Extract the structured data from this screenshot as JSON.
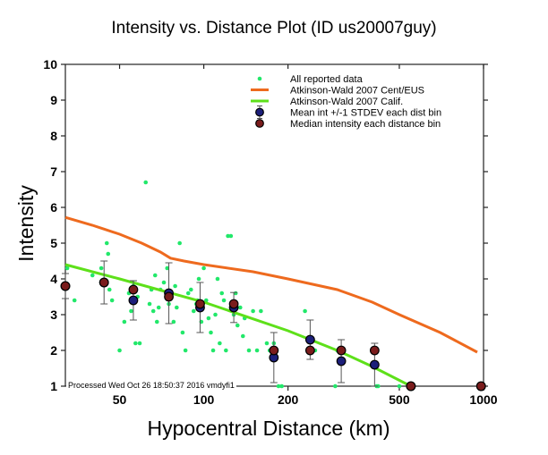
{
  "chart_data": {
    "type": "scatter",
    "title": "Intensity vs. Distance Plot (ID us20007guy)",
    "xlabel": "Hypocentral Distance (km)",
    "ylabel": "Intensity",
    "xscale": "log",
    "xlim": [
      32,
      1000
    ],
    "ylim": [
      1,
      10
    ],
    "xticks": [
      50,
      100,
      200,
      500,
      1000
    ],
    "xtick_labels": [
      "50",
      "100",
      "200",
      "500",
      "1000"
    ],
    "yticks": [
      1,
      2,
      3,
      4,
      5,
      6,
      7,
      8,
      9,
      10
    ],
    "ytick_labels": [
      "1",
      "2",
      "3",
      "4",
      "5",
      "6",
      "7",
      "8",
      "9",
      "10"
    ],
    "grid": false,
    "legend_position": "top-right",
    "annotation": "Processed Wed Oct 26 18:50:37 2016 vmdyfi1",
    "colors": {
      "reported": "#22e86a",
      "cent_eus": "#ee6a1e",
      "calif": "#5ee01a",
      "mean": "#1c1f7a",
      "median": "#7a1c1c",
      "errorbar": "#555555"
    },
    "legend": [
      {
        "label": "All reported data",
        "kind": "dot"
      },
      {
        "label": "Atkinson-Wald 2007 Cent/EUS",
        "kind": "line-orange"
      },
      {
        "label": "Atkinson-Wald 2007 Calif.",
        "kind": "line-green"
      },
      {
        "label": "Mean int +/-1 STDEV each dist bin",
        "kind": "mean"
      },
      {
        "label": "Median intensity each distance bin",
        "kind": "median"
      }
    ],
    "series": [
      {
        "name": "All reported data",
        "points": [
          [
            32.5,
            4.3
          ],
          [
            34.5,
            3.4
          ],
          [
            40,
            4.1
          ],
          [
            43,
            4.3
          ],
          [
            45,
            5.0
          ],
          [
            45.5,
            4.7
          ],
          [
            46,
            3.7
          ],
          [
            47,
            3.4
          ],
          [
            50,
            2.0
          ],
          [
            52,
            2.8
          ],
          [
            54,
            3.6
          ],
          [
            55,
            3.1
          ],
          [
            56,
            3.8
          ],
          [
            57,
            2.2
          ],
          [
            58,
            3.5
          ],
          [
            59,
            2.2
          ],
          [
            62,
            6.7
          ],
          [
            64,
            3.3
          ],
          [
            65,
            3.7
          ],
          [
            66,
            3.1
          ],
          [
            67,
            4.1
          ],
          [
            68,
            2.8
          ],
          [
            69,
            3.2
          ],
          [
            70,
            3.7
          ],
          [
            72,
            3.9
          ],
          [
            74,
            4.3
          ],
          [
            75,
            3.3
          ],
          [
            76,
            3.6
          ],
          [
            78,
            2.8
          ],
          [
            79,
            3.8
          ],
          [
            80,
            3.2
          ],
          [
            82,
            5.0
          ],
          [
            84,
            2.5
          ],
          [
            86,
            2.0
          ],
          [
            88,
            3.6
          ],
          [
            90,
            3.7
          ],
          [
            92,
            3.1
          ],
          [
            94,
            3.3
          ],
          [
            95,
            3.4
          ],
          [
            96,
            4.0
          ],
          [
            98,
            2.8
          ],
          [
            100,
            4.3
          ],
          [
            102,
            3.4
          ],
          [
            104,
            2.9
          ],
          [
            106,
            2.5
          ],
          [
            108,
            2.0
          ],
          [
            110,
            3.0
          ],
          [
            112,
            4.0
          ],
          [
            114,
            2.2
          ],
          [
            116,
            3.6
          ],
          [
            118,
            3.4
          ],
          [
            120,
            2.0
          ],
          [
            122,
            5.2
          ],
          [
            125,
            5.2
          ],
          [
            128,
            3.0
          ],
          [
            130,
            3.6
          ],
          [
            132,
            2.7
          ],
          [
            135,
            3.2
          ],
          [
            138,
            2.4
          ],
          [
            140,
            2.9
          ],
          [
            145,
            2.0
          ],
          [
            150,
            3.1
          ],
          [
            155,
            2.0
          ],
          [
            160,
            3.1
          ],
          [
            168,
            2.2
          ],
          [
            172,
            2.0
          ],
          [
            178,
            2.2
          ],
          [
            185,
            1.0
          ],
          [
            190,
            1.0
          ],
          [
            230,
            3.1
          ],
          [
            240,
            2.0
          ],
          [
            250,
            2.0
          ],
          [
            295,
            1.0
          ],
          [
            300,
            2.0
          ],
          [
            400,
            2.0
          ],
          [
            410,
            2.0
          ],
          [
            415,
            1.0
          ],
          [
            420,
            1.0
          ],
          [
            500,
            1.0
          ]
        ]
      },
      {
        "name": "Atkinson-Wald 2007 Cent/EUS",
        "points": [
          [
            32,
            5.72
          ],
          [
            40,
            5.5
          ],
          [
            50,
            5.25
          ],
          [
            60,
            5.0
          ],
          [
            70,
            4.75
          ],
          [
            76,
            4.58
          ],
          [
            85,
            4.5
          ],
          [
            100,
            4.4
          ],
          [
            150,
            4.2
          ],
          [
            200,
            4.0
          ],
          [
            300,
            3.7
          ],
          [
            400,
            3.35
          ],
          [
            500,
            3.0
          ],
          [
            700,
            2.5
          ],
          [
            950,
            1.95
          ]
        ]
      },
      {
        "name": "Atkinson-Wald 2007 Calif.",
        "points": [
          [
            32,
            4.4
          ],
          [
            50,
            4.0
          ],
          [
            100,
            3.35
          ],
          [
            200,
            2.55
          ],
          [
            300,
            2.0
          ],
          [
            400,
            1.55
          ],
          [
            550,
            1.0
          ]
        ]
      },
      {
        "name": "Mean int +/-1 STDEV each dist bin",
        "points": [
          {
            "x": 32,
            "y": 3.8,
            "sd": 0.35
          },
          {
            "x": 44,
            "y": 3.9,
            "sd": 0.6
          },
          {
            "x": 56,
            "y": 3.4,
            "sd": 0.55
          },
          {
            "x": 75,
            "y": 3.6,
            "sd": 0.85
          },
          {
            "x": 97,
            "y": 3.2,
            "sd": 0.7
          },
          {
            "x": 128,
            "y": 3.2,
            "sd": 0.42
          },
          {
            "x": 178,
            "y": 1.8,
            "sd": 0.7
          },
          {
            "x": 240,
            "y": 2.3,
            "sd": 0.55
          },
          {
            "x": 310,
            "y": 1.7,
            "sd": 0.6
          },
          {
            "x": 408,
            "y": 1.6,
            "sd": 0.6
          },
          {
            "x": 550,
            "y": 1.0,
            "sd": 0.0
          },
          {
            "x": 980,
            "y": 1.0,
            "sd": 0.0
          }
        ]
      },
      {
        "name": "Median intensity each distance bin",
        "points": [
          [
            32,
            3.8
          ],
          [
            44,
            3.9
          ],
          [
            56,
            3.7
          ],
          [
            75,
            3.5
          ],
          [
            97,
            3.3
          ],
          [
            128,
            3.3
          ],
          [
            178,
            2.0
          ],
          [
            240,
            2.0
          ],
          [
            310,
            2.0
          ],
          [
            408,
            2.0
          ],
          [
            550,
            1.0
          ],
          [
            980,
            1.0
          ]
        ]
      }
    ]
  }
}
